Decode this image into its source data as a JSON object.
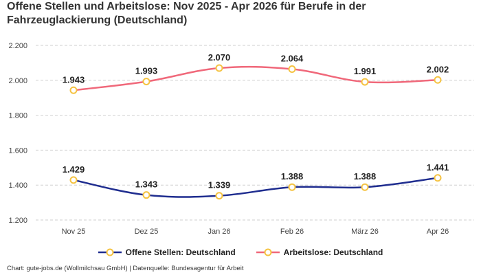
{
  "title": "Offene Stellen und Arbeitslose: Nov 2025 - Apr 2026 für Berufe in der Fahrzeuglackierung (Deutschland)",
  "footer": "Chart: gute-jobs.de (Wollmilchsau GmbH) | Datenquelle: Bundesagentur für Arbeit",
  "chart_data": {
    "type": "line",
    "title": "Offene Stellen und Arbeitslose: Nov 2025 - Apr 2026 für Berufe in der Fahrzeuglackierung (Deutschland)",
    "categories": [
      "Nov 25",
      "Dez 25",
      "Jan 26",
      "Feb 26",
      "März 26",
      "Apr 26"
    ],
    "series": [
      {
        "name": "Offene Stellen: Deutschland",
        "color": "#1f2d8f",
        "values": [
          1429,
          1343,
          1339,
          1388,
          1388,
          1441
        ],
        "labels": [
          "1.429",
          "1.343",
          "1.339",
          "1.388",
          "1.388",
          "1.441"
        ]
      },
      {
        "name": "Arbeitslose: Deutschland",
        "color": "#f0687a",
        "values": [
          1943,
          1993,
          2070,
          2064,
          1991,
          2002
        ],
        "labels": [
          "1.943",
          "1.993",
          "2.070",
          "2.064",
          "1.991",
          "2.002"
        ]
      }
    ],
    "y_ticks": [
      1200,
      1400,
      1600,
      1800,
      2000,
      2200
    ],
    "y_tick_labels": [
      "1.200",
      "1.400",
      "1.600",
      "1.800",
      "2.000",
      "2.200"
    ],
    "ylim": [
      1200,
      2200
    ],
    "grid": true,
    "legend_position": "bottom",
    "marker_color": "#f5c342"
  }
}
